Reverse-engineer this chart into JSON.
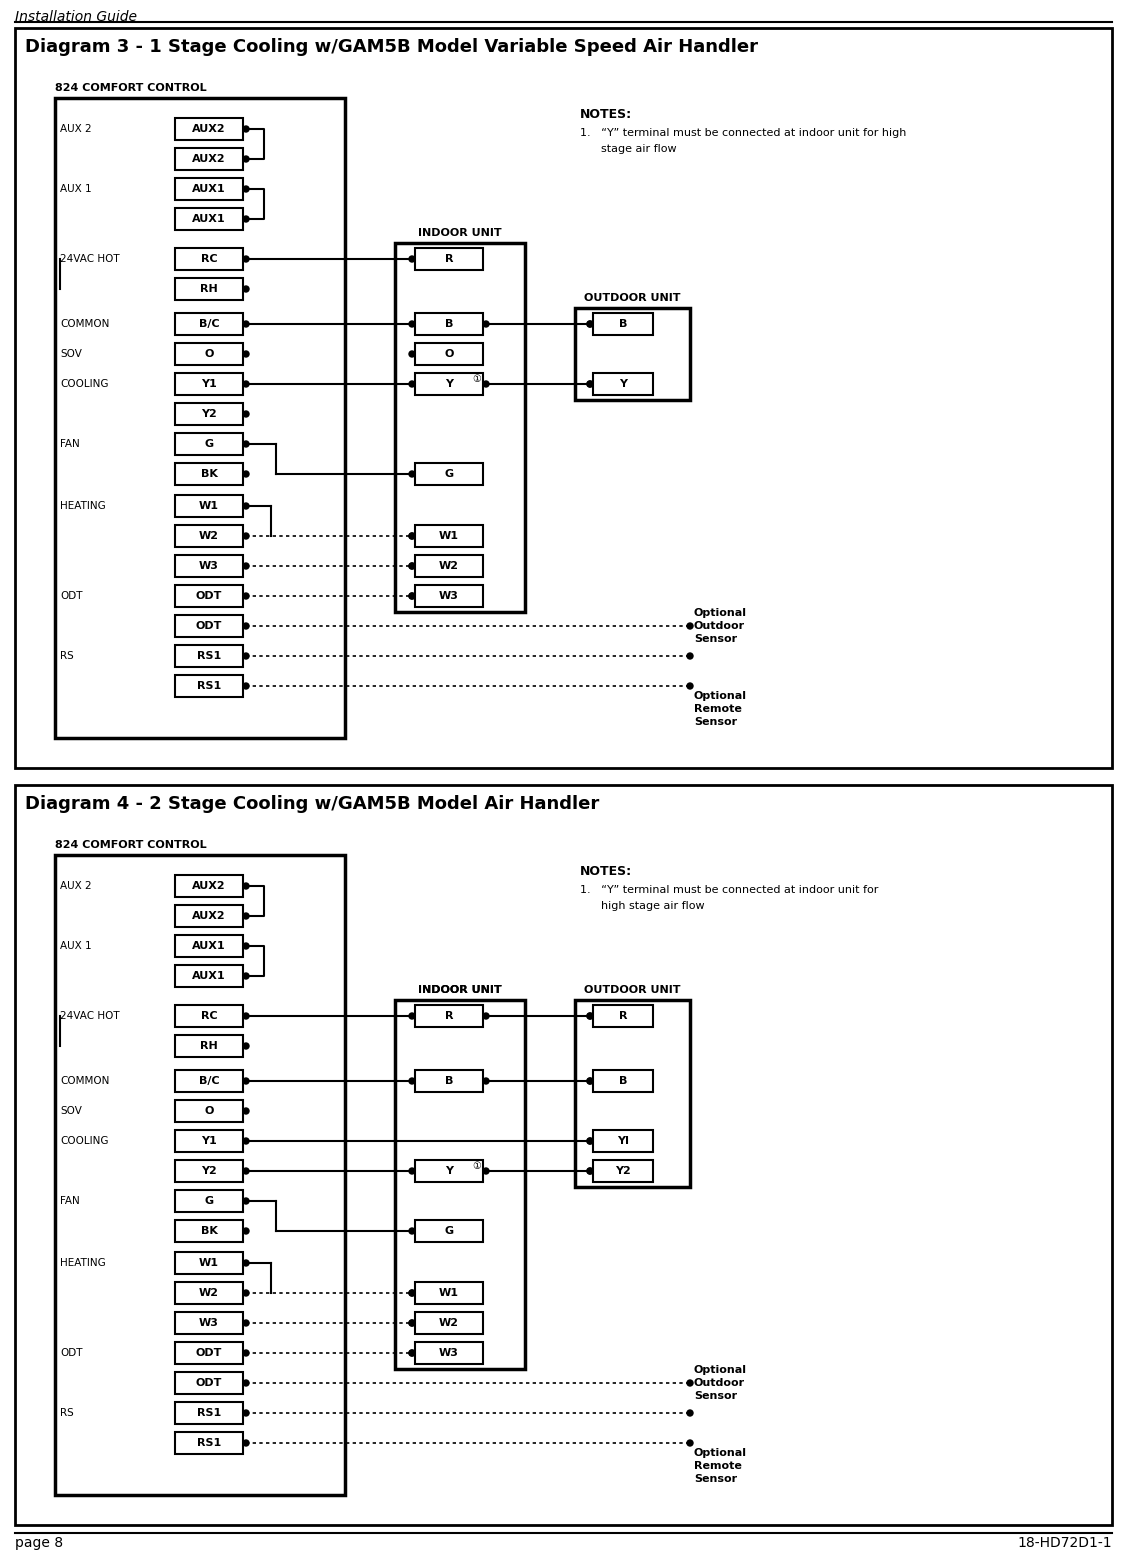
{
  "page_header": "Installation Guide",
  "page_footer_left": "page 8",
  "page_footer_right": "18-HD72D1-1",
  "diagram3_title": "Diagram 3 - 1 Stage Cooling w/GAM5B Model Variable Speed Air Handler",
  "diagram4_title": "Diagram 4 - 2 Stage Cooling w/GAM5B Model Air Handler",
  "comfort_control_label": "824 COMFORT CONTROL",
  "indoor_unit_label": "INDOOR UNIT",
  "outdoor_unit_label": "OUTDOOR UNIT",
  "notes_title": "NOTES:",
  "note1_line1": "1.   “Y” terminal must be connected at indoor unit for high",
  "note1_line2": "      stage air flow",
  "note1_d4_line1": "1.   “Y” terminal must be connected at indoor unit for",
  "note1_d4_line2": "      high stage air flow",
  "bg_color": "#ffffff"
}
